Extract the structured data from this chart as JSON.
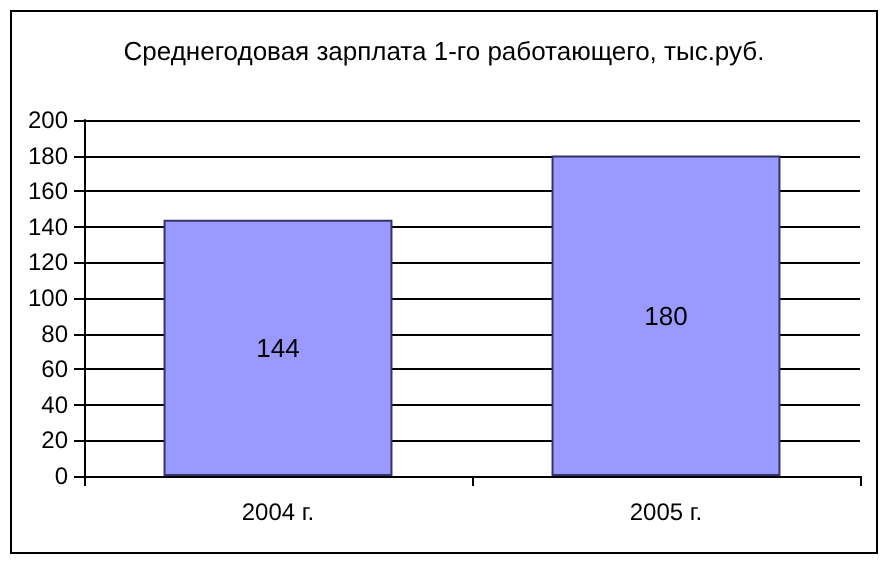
{
  "chart_data": {
    "type": "bar",
    "title": "Среднегодовая зарплата 1-го работающего, тыс.руб.",
    "categories": [
      "2004 г.",
      "2005 г."
    ],
    "values": [
      144,
      180
    ],
    "color": "#9999ff",
    "ylim": [
      0,
      200
    ],
    "yticks": [
      0,
      20,
      40,
      60,
      80,
      100,
      120,
      140,
      160,
      180,
      200
    ],
    "grid": "y",
    "data_labels": true
  }
}
